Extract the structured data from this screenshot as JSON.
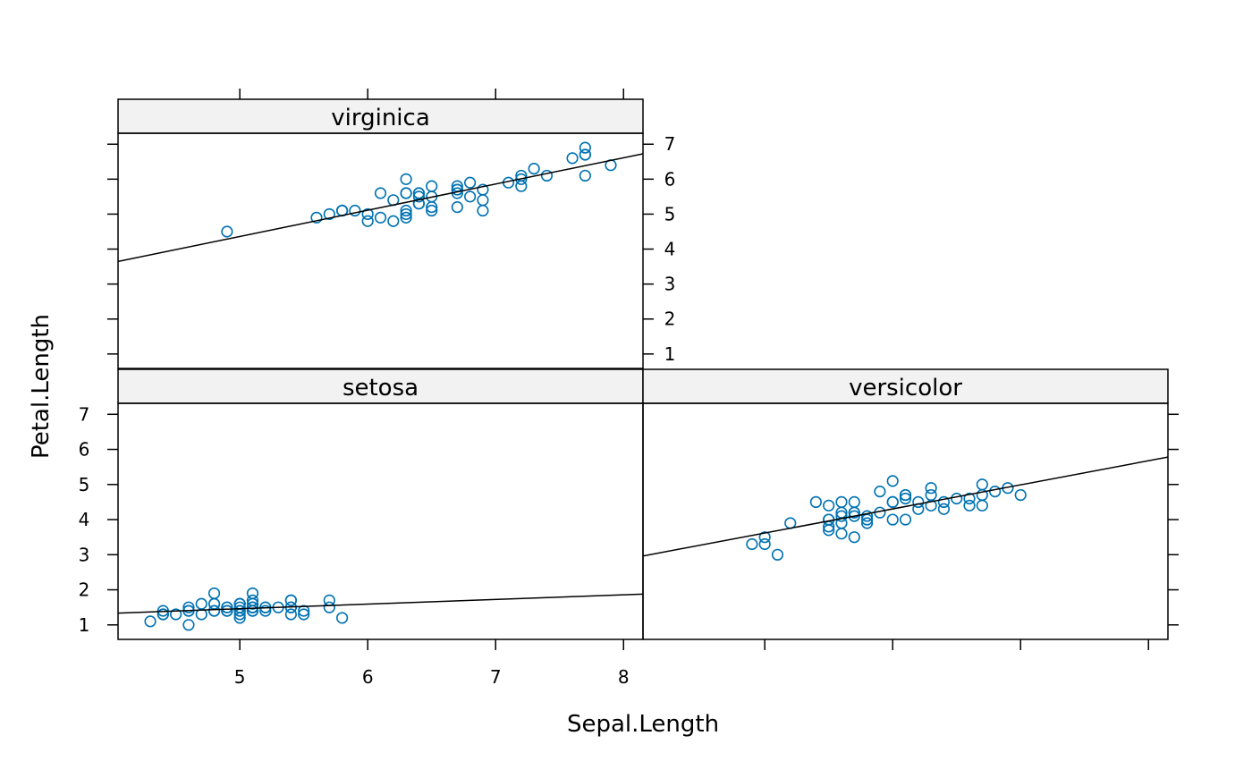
{
  "chart_data": {
    "type": "scatter",
    "xlabel": "Sepal.Length",
    "ylabel": "Petal.Length",
    "xlim": [
      4.048,
      8.152
    ],
    "ylim": [
      0.587,
      7.313
    ],
    "x_ticks": [
      5,
      6,
      7,
      8
    ],
    "y_ticks": [
      1,
      2,
      3,
      4,
      5,
      6,
      7
    ],
    "grid": false,
    "point_color": "#0072B2",
    "line_color": "#000000",
    "strip_color": "#F2F2F2",
    "regression_line": true,
    "panels": [
      {
        "name": "setosa",
        "x": [
          5.1,
          4.9,
          4.7,
          4.6,
          5.0,
          5.4,
          4.6,
          5.0,
          4.4,
          4.9,
          5.4,
          4.8,
          4.8,
          4.3,
          5.8,
          5.7,
          5.4,
          5.1,
          5.7,
          5.1,
          5.4,
          5.1,
          4.6,
          5.1,
          4.8,
          5.0,
          5.0,
          5.2,
          5.2,
          4.7,
          4.8,
          5.4,
          5.2,
          5.5,
          4.9,
          5.0,
          5.5,
          4.9,
          4.4,
          5.1,
          5.0,
          4.5,
          4.4,
          5.0,
          5.1,
          4.8,
          5.1,
          4.6,
          5.3,
          5.0
        ],
        "y": [
          1.4,
          1.4,
          1.3,
          1.5,
          1.4,
          1.7,
          1.4,
          1.5,
          1.4,
          1.5,
          1.5,
          1.6,
          1.4,
          1.1,
          1.2,
          1.5,
          1.3,
          1.4,
          1.7,
          1.5,
          1.7,
          1.5,
          1.0,
          1.7,
          1.9,
          1.6,
          1.6,
          1.5,
          1.4,
          1.6,
          1.6,
          1.5,
          1.5,
          1.4,
          1.5,
          1.2,
          1.3,
          1.4,
          1.3,
          1.5,
          1.3,
          1.3,
          1.3,
          1.6,
          1.9,
          1.4,
          1.6,
          1.4,
          1.5,
          1.4
        ]
      },
      {
        "name": "versicolor",
        "x": [
          7.0,
          6.4,
          6.9,
          5.5,
          6.5,
          5.7,
          6.3,
          4.9,
          6.6,
          5.2,
          5.0,
          5.9,
          6.0,
          6.1,
          5.6,
          6.7,
          5.6,
          5.8,
          6.2,
          5.6,
          5.9,
          6.1,
          6.3,
          6.1,
          6.4,
          6.6,
          6.8,
          6.7,
          6.0,
          5.7,
          5.5,
          5.5,
          5.8,
          6.0,
          5.4,
          6.0,
          6.7,
          6.3,
          5.6,
          5.5,
          5.5,
          6.1,
          5.8,
          5.0,
          5.6,
          5.7,
          5.7,
          6.2,
          5.1,
          5.7
        ],
        "y": [
          4.7,
          4.5,
          4.9,
          4.0,
          4.6,
          4.5,
          4.7,
          3.3,
          4.6,
          3.9,
          3.5,
          4.2,
          4.0,
          4.7,
          3.6,
          4.4,
          4.5,
          4.1,
          4.5,
          3.9,
          4.8,
          4.0,
          4.9,
          4.7,
          4.3,
          4.4,
          4.8,
          5.0,
          4.5,
          3.5,
          3.8,
          3.7,
          3.9,
          5.1,
          4.5,
          4.5,
          4.7,
          4.4,
          4.1,
          4.0,
          4.4,
          4.6,
          4.0,
          3.3,
          4.2,
          4.2,
          4.2,
          4.3,
          3.0,
          4.1
        ]
      },
      {
        "name": "virginica",
        "x": [
          6.3,
          5.8,
          7.1,
          6.3,
          6.5,
          7.6,
          4.9,
          7.3,
          6.7,
          7.2,
          6.5,
          6.4,
          6.8,
          5.7,
          5.8,
          6.4,
          6.5,
          7.7,
          7.7,
          6.0,
          6.9,
          5.6,
          7.7,
          6.3,
          6.7,
          7.2,
          6.2,
          6.1,
          6.4,
          7.2,
          7.4,
          7.9,
          6.4,
          6.3,
          6.1,
          7.7,
          6.3,
          6.4,
          6.0,
          6.9,
          6.7,
          6.9,
          5.8,
          6.8,
          6.7,
          6.7,
          6.3,
          6.5,
          6.2,
          5.9
        ],
        "y": [
          6.0,
          5.1,
          5.9,
          5.6,
          5.8,
          6.6,
          4.5,
          6.3,
          5.8,
          6.1,
          5.1,
          5.3,
          5.5,
          5.0,
          5.1,
          5.3,
          5.5,
          6.7,
          6.9,
          5.0,
          5.7,
          4.9,
          6.7,
          4.9,
          5.7,
          6.0,
          4.8,
          4.9,
          5.6,
          5.8,
          6.1,
          6.4,
          5.6,
          5.1,
          5.6,
          6.1,
          5.6,
          5.5,
          4.8,
          5.4,
          5.6,
          5.1,
          5.1,
          5.9,
          5.7,
          5.2,
          5.0,
          5.2,
          5.4,
          5.1
        ]
      }
    ]
  }
}
